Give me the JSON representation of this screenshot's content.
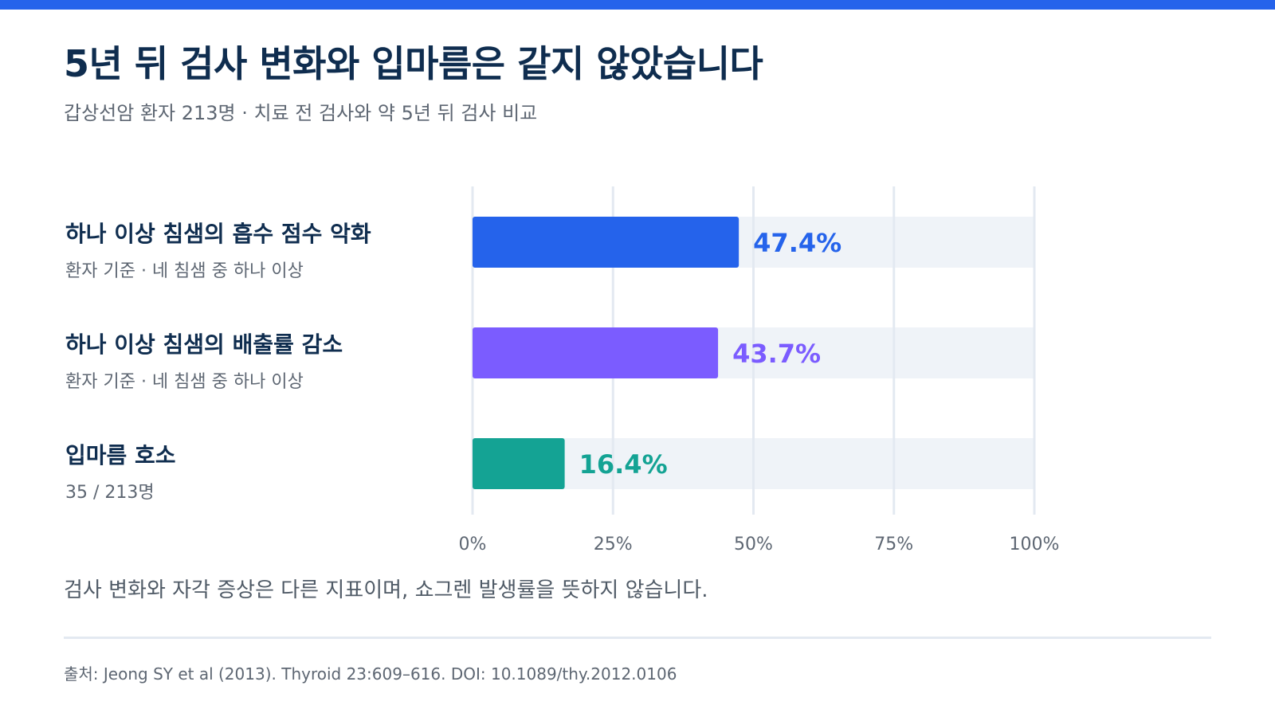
{
  "header": {
    "title": "5년 뒤 검사 변화와 입마름은 같지 않았습니다",
    "subtitle": "갑상선암 환자 213명 · 치료 전 검사와 약 5년 뒤 검사 비교"
  },
  "colors": {
    "top_bar": "#2563eb",
    "title": "#0f2d4f",
    "muted": "#5d6672",
    "track": "#eff3f8",
    "grid": "#e3e9f1"
  },
  "rows": [
    {
      "title": "하나 이상 침샘의 흡수 점수 악화",
      "sub": "환자 기준 · 네 침샘 중 하나 이상"
    },
    {
      "title": "하나 이상 침샘의 배출률 감소",
      "sub": "환자 기준 · 네 침샘 중 하나 이상"
    },
    {
      "title": "입마름 호소",
      "sub": "35 / 213명"
    }
  ],
  "chart_data": {
    "type": "bar",
    "orientation": "horizontal",
    "categories": [
      "하나 이상 침샘의 흡수 점수 악화",
      "하나 이상 침샘의 배출률 감소",
      "입마름 호소"
    ],
    "values": [
      47.4,
      43.7,
      16.4
    ],
    "value_labels": [
      "47.4%",
      "43.7%",
      "16.4%"
    ],
    "colors": [
      "#2563eb",
      "#7b5cff",
      "#14a394"
    ],
    "xlim": [
      0,
      100
    ],
    "xticks": [
      0,
      25,
      50,
      75,
      100
    ],
    "xtick_labels": [
      "0%",
      "25%",
      "50%",
      "75%",
      "100%"
    ],
    "grid": true
  },
  "note": "검사 변화와 자각 증상은 다른 지표이며, 쇼그렌 발생률을 뜻하지 않습니다.",
  "source": "출처: Jeong SY et al (2013). Thyroid 23:609–616. DOI: 10.1089/thy.2012.0106"
}
